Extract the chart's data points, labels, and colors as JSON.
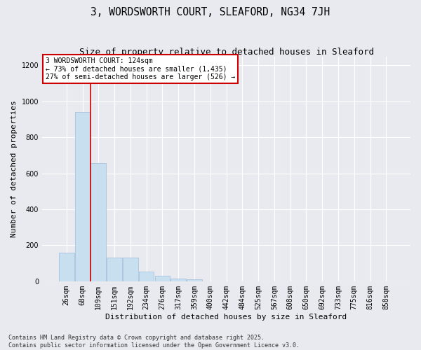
{
  "title": "3, WORDSWORTH COURT, SLEAFORD, NG34 7JH",
  "subtitle": "Size of property relative to detached houses in Sleaford",
  "xlabel": "Distribution of detached houses by size in Sleaford",
  "ylabel": "Number of detached properties",
  "categories": [
    "26sqm",
    "68sqm",
    "109sqm",
    "151sqm",
    "192sqm",
    "234sqm",
    "276sqm",
    "317sqm",
    "359sqm",
    "400sqm",
    "442sqm",
    "484sqm",
    "525sqm",
    "567sqm",
    "608sqm",
    "650sqm",
    "692sqm",
    "733sqm",
    "775sqm",
    "816sqm",
    "858sqm"
  ],
  "values": [
    160,
    940,
    655,
    130,
    130,
    55,
    30,
    15,
    10,
    0,
    0,
    0,
    0,
    0,
    0,
    0,
    0,
    0,
    0,
    0,
    0
  ],
  "bar_color": "#c8dff0",
  "bar_edge_color": "#a0bcd8",
  "bg_color": "#e8eaf0",
  "grid_color": "#ffffff",
  "annotation_box_text": "3 WORDSWORTH COURT: 124sqm\n← 73% of detached houses are smaller (1,435)\n27% of semi-detached houses are larger (526) →",
  "vline_color": "#cc0000",
  "vline_x": 1.5,
  "footnote": "Contains HM Land Registry data © Crown copyright and database right 2025.\nContains public sector information licensed under the Open Government Licence v3.0.",
  "ylim": [
    0,
    1250
  ],
  "yticks": [
    0,
    200,
    400,
    600,
    800,
    1000,
    1200
  ],
  "title_fontsize": 10.5,
  "subtitle_fontsize": 9,
  "label_fontsize": 8,
  "tick_fontsize": 7,
  "annot_fontsize": 7,
  "footnote_fontsize": 6
}
